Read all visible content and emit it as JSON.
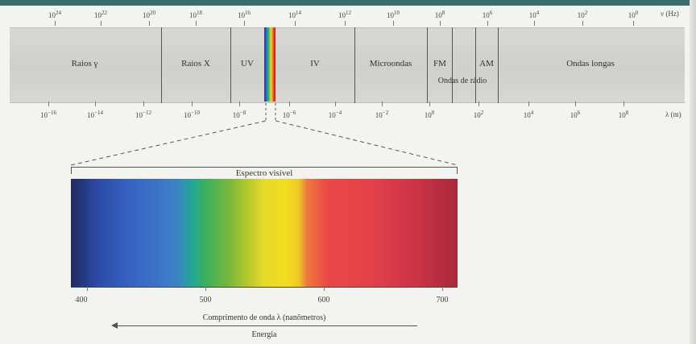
{
  "frequency_axis": {
    "ticks": [
      "10^24",
      "10^22",
      "10^20",
      "10^18",
      "10^16",
      "10^14",
      "10^12",
      "10^10",
      "10^8",
      "10^6",
      "10^4",
      "10^2",
      "10^0"
    ],
    "unit": "ν (Hz)"
  },
  "wavelength_axis": {
    "ticks": [
      "10^-16",
      "10^-14",
      "10^-12",
      "10^-10",
      "10^-8",
      "10^-6",
      "10^-4",
      "10^-2",
      "10^0",
      "10^2",
      "10^4",
      "10^6",
      "10^8"
    ],
    "unit": "λ (m)"
  },
  "regions": {
    "gamma": "Raios γ",
    "xray": "Raios X",
    "uv": "UV",
    "ir": "IV",
    "microwave": "Microondas",
    "fm": "FM",
    "am": "AM",
    "radio": "Ondas de rádio",
    "longwave": "Ondas longas"
  },
  "visible": {
    "title": "Espectro visível",
    "ticks": [
      "400",
      "500",
      "600",
      "700"
    ],
    "axis_label": "Comprimento de onda λ (nanômetros)",
    "energy_label": "Energia"
  }
}
